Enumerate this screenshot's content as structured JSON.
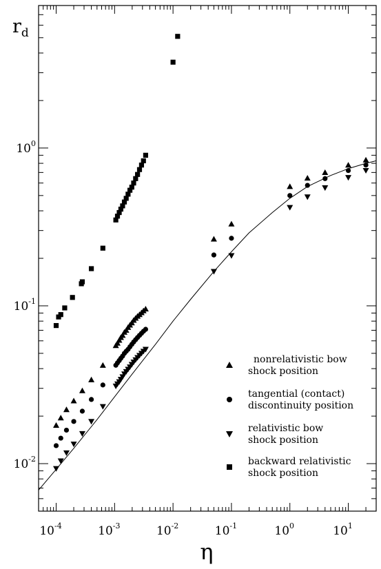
{
  "chart_data": {
    "type": "scatter",
    "xlabel": "η",
    "ylabel_main": "r",
    "ylabel_sub": "d",
    "xscale": "log",
    "yscale": "log",
    "xlim": [
      5e-05,
      30
    ],
    "ylim": [
      0.005,
      8
    ],
    "x_ticks": [
      {
        "base": "10",
        "exp": "-4",
        "value": 0.0001
      },
      {
        "base": "10",
        "exp": "-3",
        "value": 0.001
      },
      {
        "base": "10",
        "exp": "-2",
        "value": 0.01
      },
      {
        "base": "10",
        "exp": "-1",
        "value": 0.1
      },
      {
        "base": "10",
        "exp": "0",
        "value": 1
      },
      {
        "base": "10",
        "exp": "1",
        "value": 10
      }
    ],
    "y_ticks": [
      {
        "base": "10",
        "exp": "-2",
        "value": 0.01
      },
      {
        "base": "10",
        "exp": "-1",
        "value": 0.1
      },
      {
        "base": "10",
        "exp": "0",
        "value": 1
      }
    ],
    "grid": false,
    "legend_position": "bottom-right",
    "series": [
      {
        "marker": "triangle-up",
        "legend_line1": "nonrelativistic bow",
        "legend_line2": "shock position",
        "points": [
          [
            0.0001,
            0.0175
          ],
          [
            0.00012,
            0.0195
          ],
          [
            0.00015,
            0.022
          ],
          [
            0.0002,
            0.025
          ],
          [
            0.00028,
            0.029
          ],
          [
            0.0004,
            0.034
          ],
          [
            0.00063,
            0.042
          ],
          [
            0.00105,
            0.056
          ],
          [
            0.00112,
            0.058
          ],
          [
            0.0012,
            0.0605
          ],
          [
            0.00128,
            0.063
          ],
          [
            0.00137,
            0.065
          ],
          [
            0.00147,
            0.068
          ],
          [
            0.00158,
            0.07
          ],
          [
            0.0017,
            0.073
          ],
          [
            0.00183,
            0.0755
          ],
          [
            0.00197,
            0.078
          ],
          [
            0.00212,
            0.081
          ],
          [
            0.00229,
            0.0835
          ],
          [
            0.00247,
            0.086
          ],
          [
            0.00267,
            0.088
          ],
          [
            0.00289,
            0.0905
          ],
          [
            0.00312,
            0.093
          ],
          [
            0.0034,
            0.0955
          ],
          [
            0.05,
            0.265
          ],
          [
            0.1,
            0.33
          ],
          [
            1,
            0.57
          ],
          [
            2,
            0.645
          ],
          [
            4,
            0.7
          ],
          [
            10,
            0.78
          ],
          [
            20,
            0.84
          ]
        ]
      },
      {
        "marker": "circle",
        "legend_line1": "tangential (contact)",
        "legend_line2": "discontinuity position",
        "points": [
          [
            0.0001,
            0.013
          ],
          [
            0.00012,
            0.0145
          ],
          [
            0.00015,
            0.0163
          ],
          [
            0.0002,
            0.0185
          ],
          [
            0.00028,
            0.0215
          ],
          [
            0.0004,
            0.0255
          ],
          [
            0.00063,
            0.0315
          ],
          [
            0.00105,
            0.042
          ],
          [
            0.00112,
            0.0435
          ],
          [
            0.0012,
            0.045
          ],
          [
            0.00128,
            0.0465
          ],
          [
            0.00137,
            0.048
          ],
          [
            0.00147,
            0.05
          ],
          [
            0.00158,
            0.0515
          ],
          [
            0.0017,
            0.053
          ],
          [
            0.00183,
            0.055
          ],
          [
            0.00197,
            0.057
          ],
          [
            0.00212,
            0.059
          ],
          [
            0.00229,
            0.061
          ],
          [
            0.00247,
            0.063
          ],
          [
            0.00267,
            0.065
          ],
          [
            0.00289,
            0.067
          ],
          [
            0.00312,
            0.069
          ],
          [
            0.0034,
            0.071
          ],
          [
            0.05,
            0.21
          ],
          [
            0.1,
            0.268
          ],
          [
            1,
            0.5
          ],
          [
            2,
            0.58
          ],
          [
            4,
            0.64
          ],
          [
            10,
            0.72
          ],
          [
            20,
            0.78
          ]
        ]
      },
      {
        "marker": "triangle-down",
        "legend_line1": "relativistic bow",
        "legend_line2": "shock position",
        "points": [
          [
            0.0001,
            0.0093
          ],
          [
            0.00012,
            0.0104
          ],
          [
            0.00015,
            0.0117
          ],
          [
            0.0002,
            0.0133
          ],
          [
            0.00028,
            0.0155
          ],
          [
            0.0004,
            0.0185
          ],
          [
            0.00063,
            0.023
          ],
          [
            0.00105,
            0.031
          ],
          [
            0.00112,
            0.032
          ],
          [
            0.0012,
            0.033
          ],
          [
            0.00128,
            0.0342
          ],
          [
            0.00137,
            0.0355
          ],
          [
            0.00147,
            0.037
          ],
          [
            0.00158,
            0.0383
          ],
          [
            0.0017,
            0.0396
          ],
          [
            0.00183,
            0.041
          ],
          [
            0.00197,
            0.0425
          ],
          [
            0.00212,
            0.044
          ],
          [
            0.00229,
            0.0455
          ],
          [
            0.00247,
            0.047
          ],
          [
            0.00267,
            0.0485
          ],
          [
            0.00289,
            0.05
          ],
          [
            0.00312,
            0.0515
          ],
          [
            0.0034,
            0.053
          ],
          [
            0.05,
            0.165
          ],
          [
            0.1,
            0.208
          ],
          [
            1,
            0.42
          ],
          [
            2,
            0.49
          ],
          [
            4,
            0.56
          ],
          [
            10,
            0.65
          ],
          [
            20,
            0.72
          ]
        ]
      },
      {
        "marker": "square",
        "legend_line1": "backward relativistic",
        "legend_line2": "shock position",
        "points": [
          [
            0.0001,
            0.075
          ],
          [
            0.00011,
            0.085
          ],
          [
            0.00012,
            0.088
          ],
          [
            0.00014,
            0.097
          ],
          [
            0.00019,
            0.113
          ],
          [
            0.00027,
            0.138
          ],
          [
            0.00028,
            0.142
          ],
          [
            0.0004,
            0.172
          ],
          [
            0.00063,
            0.232
          ],
          [
            0.00105,
            0.35
          ],
          [
            0.00112,
            0.37
          ],
          [
            0.0012,
            0.39
          ],
          [
            0.00128,
            0.41
          ],
          [
            0.00137,
            0.43
          ],
          [
            0.00147,
            0.455
          ],
          [
            0.00158,
            0.48
          ],
          [
            0.0017,
            0.51
          ],
          [
            0.00183,
            0.54
          ],
          [
            0.00197,
            0.565
          ],
          [
            0.00212,
            0.6
          ],
          [
            0.00229,
            0.64
          ],
          [
            0.00247,
            0.68
          ],
          [
            0.00267,
            0.73
          ],
          [
            0.00289,
            0.78
          ],
          [
            0.00312,
            0.83
          ],
          [
            0.0034,
            0.9
          ],
          [
            0.01,
            3.5
          ],
          [
            0.012,
            5.1
          ]
        ]
      }
    ],
    "curve": {
      "points": [
        [
          5e-05,
          0.0068
        ],
        [
          0.0001,
          0.0092
        ],
        [
          0.0002,
          0.0125
        ],
        [
          0.0005,
          0.019
        ],
        [
          0.001,
          0.0265
        ],
        [
          0.002,
          0.037
        ],
        [
          0.005,
          0.057
        ],
        [
          0.01,
          0.08
        ],
        [
          0.02,
          0.11
        ],
        [
          0.05,
          0.165
        ],
        [
          0.1,
          0.22
        ],
        [
          0.2,
          0.29
        ],
        [
          0.5,
          0.39
        ],
        [
          1,
          0.48
        ],
        [
          2,
          0.57
        ],
        [
          5,
          0.67
        ],
        [
          10,
          0.74
        ],
        [
          20,
          0.8
        ],
        [
          30,
          0.83
        ]
      ]
    }
  }
}
